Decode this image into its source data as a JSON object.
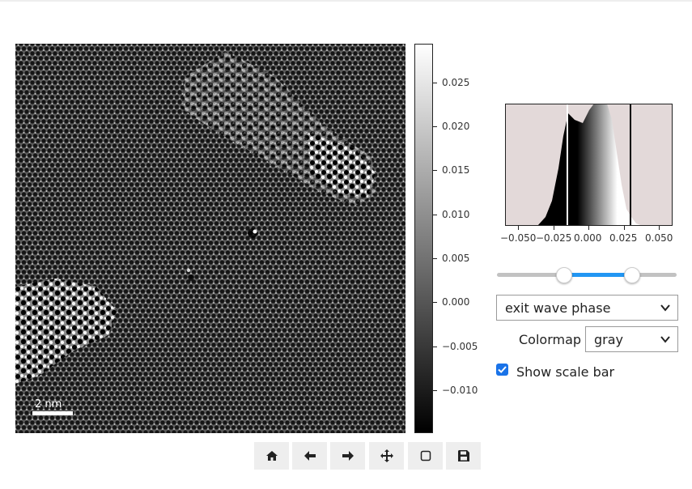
{
  "image_view": {
    "scale_bar_label": "2 nm"
  },
  "colorbar": {
    "tick_labels": [
      "0.025",
      "0.020",
      "0.015",
      "0.010",
      "0.005",
      "0.000",
      "−0.005",
      "−0.010"
    ]
  },
  "histogram": {
    "x_tick_labels": [
      "−0.050",
      "−0.025",
      "0.000",
      "0.025",
      "0.050"
    ]
  },
  "controls": {
    "view_select": {
      "selected": "exit wave phase"
    },
    "colormap_label": "Colormap",
    "colormap_select": {
      "selected": "gray"
    },
    "show_scale_bar": {
      "label": "Show scale bar",
      "checked": true
    }
  },
  "toolbar": {
    "buttons": [
      "home-icon",
      "back-arrow-icon",
      "forward-arrow-icon",
      "pan-icon",
      "zoom-rect-icon",
      "save-icon"
    ]
  },
  "colors": {
    "accent": "#2196f3",
    "histogram_bg": "#e3d9d9"
  }
}
